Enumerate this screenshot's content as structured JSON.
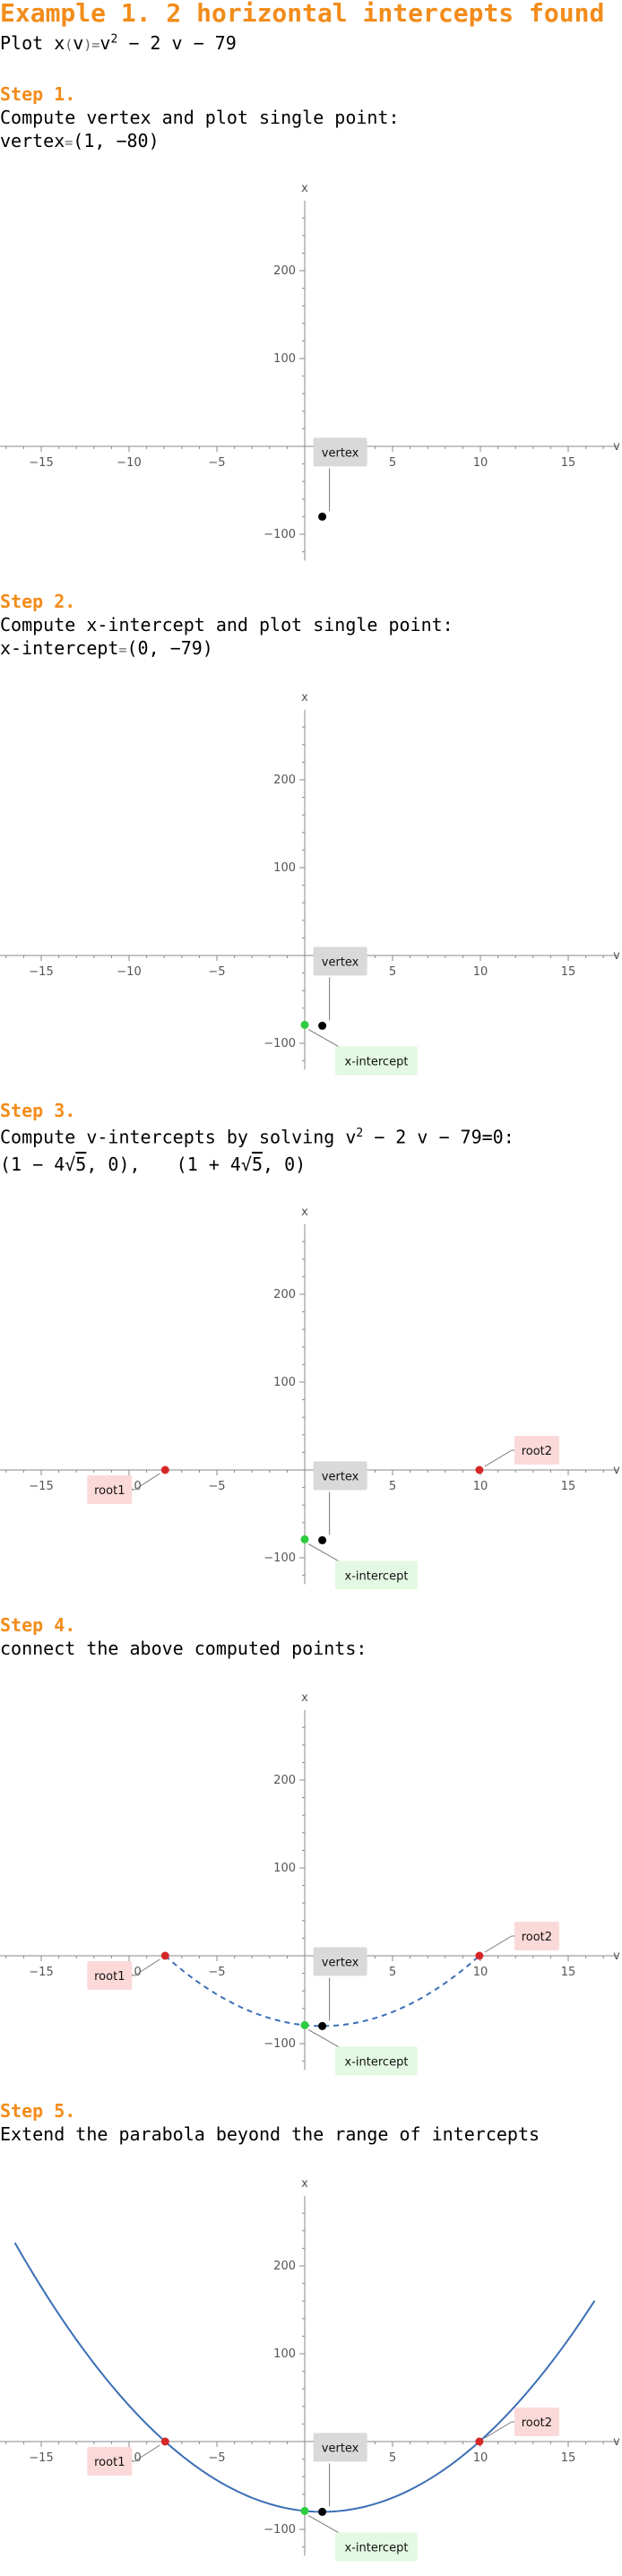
{
  "title": "Example 1. 2 horizontal intercepts found",
  "plot_line": {
    "prefix": "Plot ",
    "func": "x",
    "open": "(",
    "arg": "v",
    "close": ")",
    "eq": "=",
    "v": "v",
    "exp": "2",
    "rest": " − 2 v − 79"
  },
  "steps": [
    {
      "title": "Step 1.",
      "line1": "Compute vertex and plot single point:",
      "line2": {
        "label": "vertex",
        "eq": "=",
        "value": "(1, −80)"
      }
    },
    {
      "title": "Step 2.",
      "line1": "Compute x-intercept and plot single point:",
      "line2": {
        "label": "x-intercept",
        "eq": "=",
        "value": "(0, −79)"
      }
    },
    {
      "title": "Step 3.",
      "line1_pre": "Compute v-intercepts by solving v",
      "line1_exp": "2",
      "line1_post": " − 2 v − 79=0:",
      "roots": {
        "r1_pre": "(1 − 4",
        "r1_rad": "5",
        "r1_post": ", 0),",
        "r2_pre": "(1 + 4",
        "r2_rad": "5",
        "r2_post": ", 0)"
      }
    },
    {
      "title": "Step 4.",
      "line1": "connect the above computed points:"
    },
    {
      "title": "Step 5.",
      "line1": "Extend the parabola beyond the range of intercepts"
    }
  ],
  "colors": {
    "accent": "#f28c1a",
    "vertex_point": "#000000",
    "x_intercept_point": "#2ecc40",
    "root_point": "#d62728",
    "curve": "#3b6fb6",
    "vertex_box": "#d9d9d9",
    "x_intercept_box": "#e3f9e3",
    "root_box": "#fbd9d9",
    "axis": "#888888"
  },
  "chart_common": {
    "type": "scatter",
    "xlabel": "v",
    "ylabel": "x",
    "xlim": [
      -17,
      18
    ],
    "ylim": [
      -130,
      290
    ],
    "xticks": [
      -15,
      -10,
      -5,
      5,
      10,
      15
    ],
    "xtick_labels": [
      "−15",
      "−10",
      "−5",
      "5",
      "10",
      "15"
    ],
    "yticks": [
      -100,
      100,
      200
    ],
    "ytick_labels": [
      "−100",
      "100",
      "200"
    ],
    "grid": false
  },
  "chart_data": [
    {
      "type": "scatter",
      "points": [
        {
          "name": "vertex",
          "x": 1,
          "y": -80
        }
      ]
    },
    {
      "type": "scatter",
      "points": [
        {
          "name": "vertex",
          "x": 1,
          "y": -80
        },
        {
          "name": "x-intercept",
          "x": 0,
          "y": -79
        }
      ]
    },
    {
      "type": "scatter",
      "points": [
        {
          "name": "vertex",
          "x": 1,
          "y": -80
        },
        {
          "name": "x-intercept",
          "x": 0,
          "y": -79
        },
        {
          "name": "root1",
          "x": -7.944,
          "y": 0
        },
        {
          "name": "root2",
          "x": 9.944,
          "y": 0
        }
      ]
    },
    {
      "type": "line",
      "points": [
        {
          "name": "vertex",
          "x": 1,
          "y": -80
        },
        {
          "name": "x-intercept",
          "x": 0,
          "y": -79
        },
        {
          "name": "root1",
          "x": -7.944,
          "y": 0
        },
        {
          "name": "root2",
          "x": 9.944,
          "y": 0
        }
      ],
      "curve": {
        "expression": "v^2 - 2v - 79",
        "domain": [
          -7.944,
          9.944
        ],
        "style": "dashed"
      }
    },
    {
      "type": "line",
      "points": [
        {
          "name": "vertex",
          "x": 1,
          "y": -80
        },
        {
          "name": "x-intercept",
          "x": 0,
          "y": -79
        },
        {
          "name": "root1",
          "x": -7.944,
          "y": 0
        },
        {
          "name": "root2",
          "x": 9.944,
          "y": 0
        }
      ],
      "curve": {
        "expression": "v^2 - 2v - 79",
        "domain": [
          -16.5,
          16.5
        ],
        "style": "solid"
      }
    }
  ]
}
